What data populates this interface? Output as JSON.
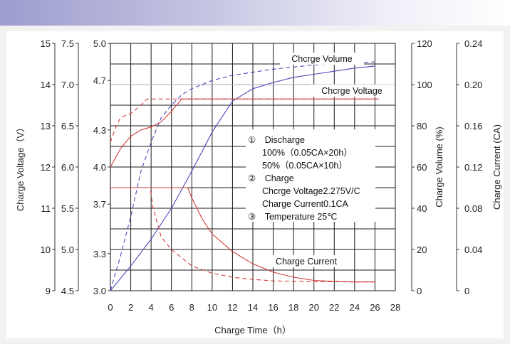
{
  "chart_data": {
    "type": "line",
    "x_axis": {
      "label": "Charge Time（h）",
      "range": [
        0,
        28
      ],
      "ticks": [
        "0",
        "2",
        "4",
        "6",
        "8",
        "10",
        "12",
        "14",
        "16",
        "18",
        "20",
        "22",
        "24",
        "26",
        "28"
      ]
    },
    "left_axes": [
      {
        "label": "Charge Voltage（V）",
        "range": [
          9,
          15
        ],
        "ticks": [
          "9",
          "10",
          "11",
          "12",
          "13",
          "14",
          "15"
        ]
      },
      {
        "label": "",
        "range": [
          4.5,
          7.5
        ],
        "ticks": [
          "4.5",
          "5.0",
          "5.5",
          "6.0",
          "6.5",
          "7.0",
          "7.5"
        ]
      },
      {
        "label": "",
        "range": [
          3.0,
          5.0
        ],
        "ticks": [
          "3.0",
          "3.3",
          "3.7",
          "4.0",
          "4.3",
          "4.7",
          "5.0"
        ]
      }
    ],
    "right_axes": [
      {
        "label": "Charge Volume (%)",
        "range": [
          0,
          120
        ],
        "ticks": [
          "0",
          "20",
          "40",
          "60",
          "80",
          "100",
          "120"
        ]
      },
      {
        "label": "Charge Current (CA)",
        "range": [
          0,
          0.24
        ],
        "ticks": [
          "0",
          "0.04",
          "0.08",
          "0.12",
          "0.16",
          "0.20",
          "0.24"
        ]
      }
    ],
    "grid": true,
    "series": [
      {
        "name": "Chcrge Volume",
        "group": "volume",
        "discharge": "100%",
        "style": "solid",
        "color": "#4a4ab8",
        "scale": "percent",
        "x": [
          0,
          2,
          4,
          6,
          8,
          10,
          12,
          14,
          16,
          18,
          20,
          22,
          24,
          26
        ],
        "y": [
          0,
          12,
          25,
          40,
          58,
          77,
          92,
          98,
          101,
          103.5,
          105,
          106.5,
          108,
          109
        ]
      },
      {
        "name": "Chcrge Volume",
        "group": "volume",
        "discharge": "50%",
        "style": "dashed",
        "color": "#4a4ab8",
        "scale": "percent",
        "x": [
          0,
          1,
          2,
          3,
          4,
          5,
          6,
          7,
          8,
          10,
          12,
          14,
          16,
          18,
          20,
          22,
          24,
          26
        ],
        "y": [
          0,
          17,
          36,
          58,
          72,
          84,
          90,
          95,
          98,
          102,
          104.5,
          106,
          107.5,
          108.5,
          109.5,
          110,
          110.5,
          111
        ]
      },
      {
        "name": "Chcrge Voltage",
        "group": "voltage",
        "discharge": "100%",
        "style": "solid",
        "color": "#d23c3c",
        "scale": "volts_12v",
        "x": [
          0,
          1,
          2,
          3,
          4,
          5,
          6,
          7,
          7.6,
          26.4
        ],
        "y": [
          12.0,
          12.45,
          12.75,
          12.9,
          12.97,
          13.1,
          13.35,
          13.65,
          13.65,
          13.65
        ]
      },
      {
        "name": "Chcrge Voltage",
        "group": "voltage",
        "discharge": "50%",
        "style": "dashed",
        "color": "#d23c3c",
        "scale": "volts_12v",
        "x": [
          0,
          0.5,
          1,
          2,
          3,
          3.6,
          3.9,
          26.4
        ],
        "y": [
          12.6,
          12.95,
          13.2,
          13.3,
          13.5,
          13.65,
          13.65,
          13.65
        ]
      },
      {
        "name": "Charge Current",
        "group": "current",
        "discharge": "100%",
        "style": "solid",
        "color": "#d23c3c",
        "scale": "ca",
        "x": [
          0,
          7.6,
          8,
          9,
          10,
          12,
          14,
          16,
          18,
          20,
          22,
          24,
          26
        ],
        "y": [
          0.1,
          0.1,
          0.09,
          0.07,
          0.055,
          0.038,
          0.026,
          0.018,
          0.013,
          0.01,
          0.009,
          0.0085,
          0.0085
        ]
      },
      {
        "name": "Charge Current",
        "group": "current",
        "discharge": "50%",
        "style": "dashed",
        "color": "#d23c3c",
        "scale": "ca",
        "x": [
          0,
          3.9,
          4.2,
          5,
          6,
          7,
          8,
          10,
          12,
          14,
          16,
          18,
          20,
          22,
          24,
          26
        ],
        "y": [
          0.1,
          0.1,
          0.08,
          0.052,
          0.04,
          0.032,
          0.024,
          0.017,
          0.013,
          0.011,
          0.0095,
          0.009,
          0.0088,
          0.0086,
          0.0085,
          0.0085
        ]
      }
    ],
    "curve_labels": [
      "Chcrge Volume",
      "Chcrge Voltage",
      "Charge Current"
    ],
    "notes": [
      "①　Discharge",
      "100%（0.05CA×20h）",
      "50%（0.05CA×10h）",
      "②　Charge",
      "Chcrge Voltage2.275V/C",
      "Charge Current0.1CA",
      "③　Temperature 25℃"
    ]
  },
  "colors": {
    "banner_start": "#9d9dcf",
    "grid": "#1a1a1a",
    "ref_line": "#a8a8b8",
    "red": "#d23c3c",
    "blue": "#4a4ab8",
    "background": "#f2f2f2"
  }
}
